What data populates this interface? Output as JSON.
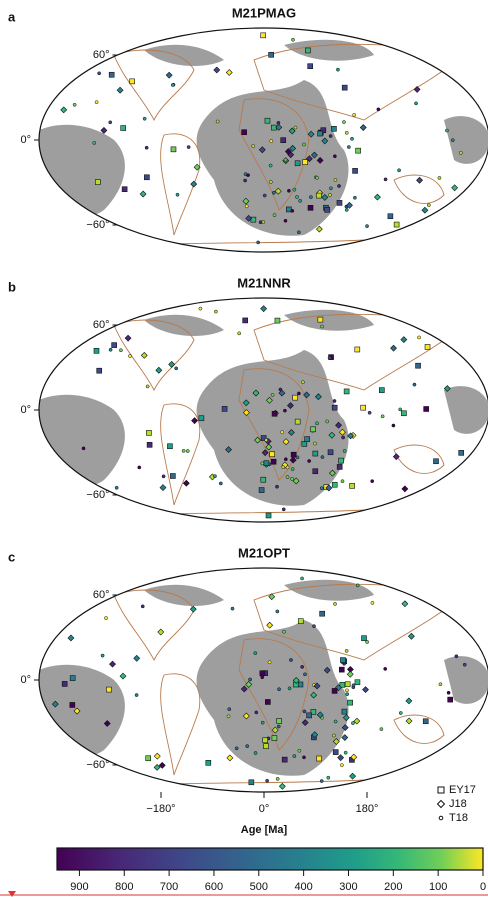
{
  "panels": [
    {
      "label": "a",
      "title": "M21PMAG",
      "lat_ticks": [
        {
          "value": 60,
          "label": "60°"
        },
        {
          "value": 0,
          "label": "0°"
        },
        {
          "value": -60,
          "label": "−60°"
        }
      ]
    },
    {
      "label": "b",
      "title": "M21NNR",
      "lat_ticks": [
        {
          "value": 60,
          "label": "60°"
        },
        {
          "value": 0,
          "label": "0°"
        },
        {
          "value": -60,
          "label": "−60°"
        }
      ]
    },
    {
      "label": "c",
      "title": "M21OPT",
      "lat_ticks": [
        {
          "value": 60,
          "label": "60°"
        },
        {
          "value": 0,
          "label": "0°"
        },
        {
          "value": -60,
          "label": "−60°"
        }
      ]
    }
  ],
  "lon_ticks": [
    {
      "value": -180,
      "label": "−180°"
    },
    {
      "value": 0,
      "label": "0°"
    },
    {
      "value": 180,
      "label": "180°"
    }
  ],
  "legend": [
    "EY17",
    "J18",
    "T18"
  ],
  "colorbar": {
    "label": "Age [Ma]",
    "lim": [
      950,
      0
    ],
    "ticks": [
      900,
      800,
      700,
      600,
      500,
      400,
      300,
      200,
      100,
      0
    ]
  }
}
